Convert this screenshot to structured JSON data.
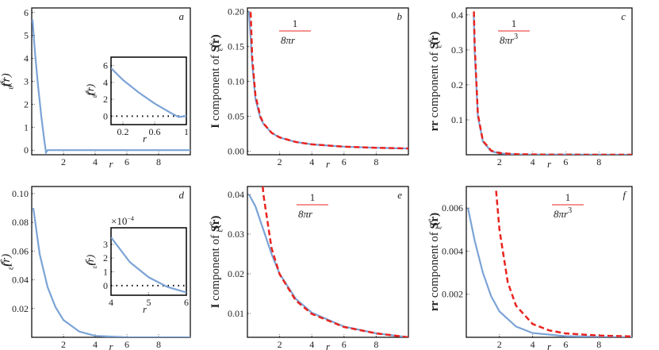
{
  "chart_data": [
    {
      "type": "line",
      "letter": "a",
      "ylabel": [
        {
          "t": "f",
          "s": "it"
        },
        {
          "t": "s",
          "s": "sup"
        },
        {
          "t": "i",
          "s": "supsub"
        },
        {
          "t": "ε",
          "s": "sub"
        },
        {
          "t": "(r)",
          "s": "it"
        }
      ],
      "xlabel": "r",
      "xlim": [
        0,
        10
      ],
      "xticks": [
        2,
        4,
        6,
        8
      ],
      "ylim": [
        -0.2,
        6.2
      ],
      "yticks": [
        0,
        1,
        2,
        3,
        4,
        5,
        6
      ],
      "series": [
        {
          "color": "#7ba3d6",
          "x": [
            0.05,
            0.2,
            0.4,
            0.6,
            0.8,
            0.9,
            1,
            10
          ],
          "values": [
            5.7,
            4.3,
            2.8,
            1.5,
            0.4,
            -0.1,
            0,
            0
          ]
        }
      ],
      "inset": {
        "type": "line",
        "ylabel": [
          {
            "t": "f",
            "s": "it"
          },
          {
            "t": "s",
            "s": "sup"
          },
          {
            "t": "i",
            "s": "supsub"
          },
          {
            "t": "ε",
            "s": "sub"
          },
          {
            "t": "(r)",
            "s": "it"
          }
        ],
        "xlabel": "r",
        "xlim": [
          0.05,
          1
        ],
        "xticks": [
          0.2,
          0.6,
          1
        ],
        "ylim": [
          -1,
          7
        ],
        "yticks": [
          0,
          2,
          4,
          6
        ],
        "reference_line": 0,
        "series": [
          {
            "color": "#7ba3d6",
            "x": [
              0.05,
              0.2,
              0.4,
              0.6,
              0.8,
              0.9,
              1
            ],
            "values": [
              5.7,
              4.3,
              2.8,
              1.5,
              0.4,
              -0.1,
              0
            ]
          }
        ]
      }
    },
    {
      "type": "line",
      "letter": "b",
      "ylabel": [
        {
          "t": "I",
          "s": "b"
        },
        {
          "t": " component of ",
          "s": ""
        },
        {
          "t": "S",
          "s": "b"
        },
        {
          "t": "s",
          "s": "sup"
        },
        {
          "t": "i",
          "s": "supsub"
        },
        {
          "t": "ε",
          "s": "sub"
        },
        {
          "t": "(r)",
          "s": "b"
        }
      ],
      "xlabel": "r",
      "xlim": [
        0,
        10
      ],
      "xticks": [
        2,
        4,
        6,
        8
      ],
      "ylim": [
        -0.005,
        0.205
      ],
      "yticks": [
        {
          "value": 0,
          "label": "0.00"
        },
        0.05,
        {
          "value": 0.1,
          "label": "0.10"
        },
        {
          "value": 0.15,
          "label": "0.15"
        },
        {
          "value": 0.2,
          "label": "0.20"
        }
      ],
      "annotation": {
        "num": "1",
        "den": "8πr"
      },
      "series": [
        {
          "color": "#7ba3d6",
          "x": [
            0.1,
            0.3,
            0.5,
            0.8,
            1,
            1.5,
            2,
            3,
            4,
            6,
            8,
            10
          ],
          "values": [
            0.2,
            0.125,
            0.075,
            0.048,
            0.039,
            0.0263,
            0.0198,
            0.0133,
            0.0099,
            0.0066,
            0.005,
            0.004
          ]
        },
        {
          "color": "#e8241f",
          "dashed": true,
          "x": [
            0.2,
            0.3,
            0.5,
            0.8,
            1,
            1.5,
            2,
            3,
            4,
            6,
            8,
            10
          ],
          "values": [
            0.199,
            0.133,
            0.08,
            0.05,
            0.0398,
            0.0265,
            0.0199,
            0.0133,
            0.0099,
            0.0066,
            0.005,
            0.004
          ]
        }
      ]
    },
    {
      "type": "line",
      "letter": "c",
      "ylabel": [
        {
          "t": "rr",
          "s": "b"
        },
        {
          "t": " component of ",
          "s": ""
        },
        {
          "t": "S",
          "s": "b"
        },
        {
          "t": "s",
          "s": "sup"
        },
        {
          "t": "i",
          "s": "supsub"
        },
        {
          "t": "ε",
          "s": "sub"
        },
        {
          "t": "(r)",
          "s": "b"
        }
      ],
      "xlabel": "r",
      "xlim": [
        0,
        10
      ],
      "xticks": [
        2,
        4,
        6,
        8
      ],
      "ylim": [
        0,
        0.42
      ],
      "yticks": [
        0.1,
        0.2,
        0.3,
        0.4
      ],
      "annotation": {
        "num": "1",
        "den": "8πr",
        "den_sup": "3"
      },
      "series": [
        {
          "color": "#7ba3d6",
          "x": [
            0.45,
            0.5,
            0.7,
            1,
            1.5,
            2,
            3,
            10
          ],
          "values": [
            0.4,
            0.3,
            0.11,
            0.038,
            0.01,
            0.004,
            0.001,
            0
          ]
        },
        {
          "color": "#e8241f",
          "dashed": true,
          "x": [
            0.46,
            0.5,
            0.7,
            1,
            1.5,
            2,
            3,
            5,
            10
          ],
          "values": [
            0.41,
            0.318,
            0.116,
            0.04,
            0.0118,
            0.005,
            0.0015,
            0.0003,
            4e-05
          ]
        }
      ]
    },
    {
      "type": "line",
      "letter": "d",
      "ylabel": [
        {
          "t": "f",
          "s": "it"
        },
        {
          "t": "e",
          "s": "sup"
        },
        {
          "t": "ε",
          "s": "sub"
        },
        {
          "t": "(r)",
          "s": "it"
        }
      ],
      "xlabel": "r",
      "xlim": [
        0,
        10
      ],
      "xticks": [
        2,
        4,
        6,
        8
      ],
      "ylim": [
        0,
        0.105
      ],
      "yticks": [
        0.02,
        0.04,
        0.06,
        0.08,
        {
          "value": 0.1,
          "label": "0.10"
        }
      ],
      "series": [
        {
          "color": "#7ba3d6",
          "x": [
            0.1,
            0.5,
            1,
            1.5,
            2,
            3,
            4,
            6,
            10
          ],
          "values": [
            0.09,
            0.058,
            0.035,
            0.021,
            0.012,
            0.004,
            0.001,
            0,
            0
          ]
        }
      ],
      "inset": {
        "type": "line",
        "ylabel": [
          {
            "t": "f",
            "s": "it"
          },
          {
            "t": "e",
            "s": "sup"
          },
          {
            "t": "ε",
            "s": "sub"
          },
          {
            "t": "(r)",
            "s": "it"
          }
        ],
        "multiplier": {
          "base": "×10",
          "exp": "−4"
        },
        "xlabel": "r",
        "xlim": [
          4,
          6
        ],
        "xticks": [
          4,
          5,
          6
        ],
        "ylim": [
          -0.7,
          4.2
        ],
        "yticks": [
          0,
          1,
          2,
          3
        ],
        "reference_line": 0,
        "series": [
          {
            "color": "#7ba3d6",
            "x": [
              4,
              4.5,
              5,
              5.5,
              6
            ],
            "values": [
              3.5,
              1.7,
              0.6,
              -0.1,
              -0.5
            ]
          }
        ]
      }
    },
    {
      "type": "line",
      "letter": "e",
      "ylabel": [
        {
          "t": "I",
          "s": "b"
        },
        {
          "t": " component of ",
          "s": ""
        },
        {
          "t": "S",
          "s": "b"
        },
        {
          "t": "e",
          "s": "sup"
        },
        {
          "t": "ε",
          "s": "sub"
        },
        {
          "t": "(r)",
          "s": "b"
        }
      ],
      "xlabel": "r",
      "xlim": [
        0,
        10
      ],
      "xticks": [
        2,
        4,
        6,
        8
      ],
      "ylim": [
        0.004,
        0.042
      ],
      "yticks": [
        0.01,
        0.02,
        0.03,
        0.04
      ],
      "annotation": {
        "num": "1",
        "den": "8πr"
      },
      "series": [
        {
          "color": "#7ba3d6",
          "x": [
            0.1,
            0.5,
            1,
            1.5,
            2,
            3,
            4,
            6,
            8,
            10
          ],
          "values": [
            0.04,
            0.037,
            0.031,
            0.025,
            0.02,
            0.0137,
            0.0102,
            0.0067,
            0.005,
            0.004
          ]
        },
        {
          "color": "#e8241f",
          "dashed": true,
          "x": [
            0.95,
            1,
            1.5,
            2,
            3,
            4,
            6,
            8,
            10
          ],
          "values": [
            0.042,
            0.0398,
            0.0265,
            0.0199,
            0.0133,
            0.0099,
            0.0066,
            0.005,
            0.004
          ]
        }
      ]
    },
    {
      "type": "line",
      "letter": "f",
      "ylabel": [
        {
          "t": "rr",
          "s": "b"
        },
        {
          "t": " component of ",
          "s": ""
        },
        {
          "t": "S",
          "s": "b"
        },
        {
          "t": "e",
          "s": "sup"
        },
        {
          "t": "ε",
          "s": "sub"
        },
        {
          "t": "(r)",
          "s": "b"
        }
      ],
      "xlabel": "r",
      "xlim": [
        0,
        10
      ],
      "xticks": [
        2,
        4,
        6,
        8
      ],
      "ylim": [
        0,
        0.007
      ],
      "yticks": [
        0.002,
        0.004,
        0.006
      ],
      "annotation": {
        "num": "1",
        "den": "8πr",
        "den_sup": "3"
      },
      "series": [
        {
          "color": "#7ba3d6",
          "x": [
            0.1,
            0.5,
            1,
            1.5,
            2,
            3,
            4,
            6,
            10
          ],
          "values": [
            0.006,
            0.0045,
            0.003,
            0.0019,
            0.0012,
            0.0005,
            0.0002,
            5e-05,
            0
          ]
        },
        {
          "color": "#e8241f",
          "dashed": true,
          "x": [
            1.8,
            2,
            2.5,
            3,
            4,
            5,
            6,
            8,
            10
          ],
          "values": [
            0.0068,
            0.005,
            0.00255,
            0.00147,
            0.00062,
            0.00032,
            0.00018,
            8e-05,
            4e-05
          ]
        }
      ]
    }
  ]
}
